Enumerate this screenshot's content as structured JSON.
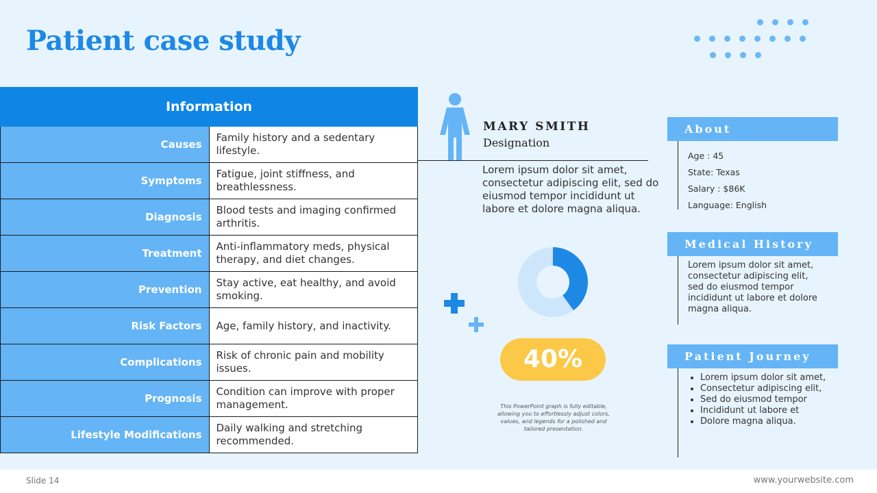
{
  "slide_title": "Patient case study",
  "table": {
    "header": "Information",
    "rows": [
      {
        "label": "Causes",
        "value": "Family history and a sedentary lifestyle."
      },
      {
        "label": "Symptoms",
        "value": "Fatigue, joint stiffness, and breathlessness."
      },
      {
        "label": "Diagnosis",
        "value": "Blood tests and imaging confirmed arthritis."
      },
      {
        "label": "Treatment",
        "value": "Anti-inflammatory meds, physical therapy, and diet changes."
      },
      {
        "label": "Prevention",
        "value": "Stay active, eat healthy, and avoid smoking."
      },
      {
        "label": "Risk Factors",
        "value": "Age, family history, and inactivity."
      },
      {
        "label": "Complications",
        "value": "Risk of chronic pain and mobility issues."
      },
      {
        "label": "Prognosis",
        "value": "Condition can improve with proper management."
      },
      {
        "label": "Lifestyle Modifications",
        "value": "Daily walking and stretching recommended."
      }
    ]
  },
  "profile": {
    "name": "MARY SMITH",
    "designation": "Designation",
    "intro": "Lorem ipsum dolor sit amet, consectetur adipiscing elit, sed do eiusmod tempor incididunt ut labore et dolore magna aliqua."
  },
  "chart": {
    "percentage_label": "40%",
    "note": "This PowerPoint graph is fully editable, allowing you to effortlessly adjust colors, values, and legends for a polished and tailored presentation."
  },
  "chart_data": {
    "type": "pie",
    "categories": [
      "",
      ""
    ],
    "values": [
      40,
      60
    ],
    "colors": [
      "#1e88e5",
      "#cde6fb"
    ]
  },
  "about": {
    "title": "About",
    "items": [
      "Age : 45",
      "State: Texas",
      "Salary : $86K",
      "Language: English"
    ]
  },
  "medical_history": {
    "title": "Medical History",
    "text": "Lorem ipsum dolor sit amet, consectetur adipiscing elit, sed do eiusmod tempor incididunt ut labore et dolore magna aliqua."
  },
  "patient_journey": {
    "title": "Patient Journey",
    "items": [
      "Lorem ipsum dolor sit amet,",
      "Consectetur adipiscing elit,",
      "Sed do eiusmod tempor",
      "Incididunt ut labore et",
      "Dolore magna aliqua."
    ]
  },
  "footer": {
    "slide_number": "Slide 14",
    "website": "www.yourwebsite.com"
  },
  "colors": {
    "primary": "#0f86e6",
    "light_blue": "#64b4f6",
    "accent_yellow": "#fcc847",
    "background": "#e8f4fd"
  },
  "icons": [
    "person-icon",
    "plus-icon",
    "dots-decoration"
  ]
}
